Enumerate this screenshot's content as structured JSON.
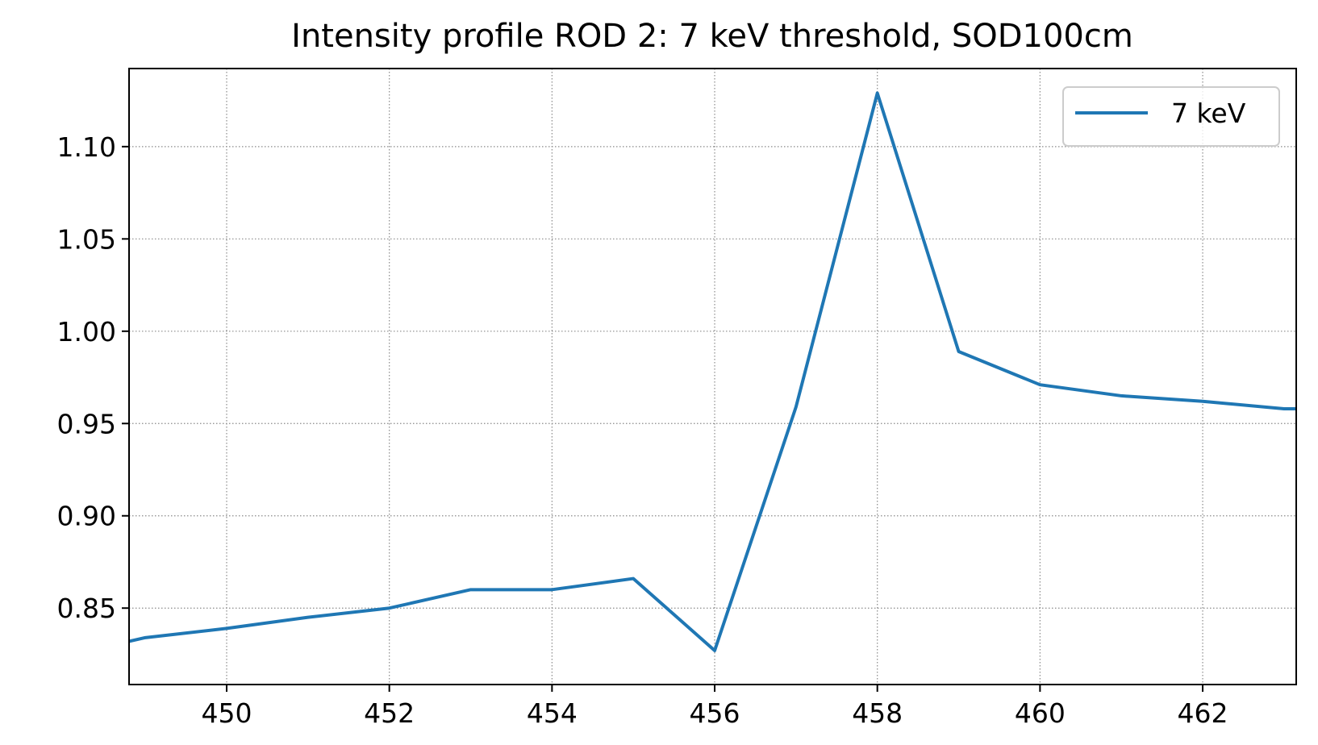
{
  "chart_data": {
    "type": "line",
    "title": "Intensity profile ROD 2: 7 keV threshold, SOD100cm",
    "xlabel": "",
    "ylabel": "",
    "xlim": [
      448.8,
      463.15
    ],
    "ylim": [
      0.8086,
      1.1423
    ],
    "x_ticks": [
      450,
      452,
      454,
      456,
      458,
      460,
      462
    ],
    "y_ticks": [
      0.85,
      0.9,
      0.95,
      1.0,
      1.05,
      1.1
    ],
    "x_tick_labels": [
      "450",
      "452",
      "454",
      "456",
      "458",
      "460",
      "462"
    ],
    "y_tick_labels": [
      "0.85",
      "0.90",
      "0.95",
      "1.00",
      "1.05",
      "1.10"
    ],
    "grid": true,
    "legend_position": "top-right",
    "series": [
      {
        "name": "7 keV",
        "color": "#1f77b4",
        "x": [
          448.8,
          449,
          450,
          451,
          452,
          453,
          454,
          455,
          456,
          457,
          458,
          459,
          460,
          461,
          462,
          463,
          463.15
        ],
        "y": [
          0.832,
          0.834,
          0.839,
          0.845,
          0.85,
          0.86,
          0.86,
          0.866,
          0.827,
          0.959,
          1.129,
          0.989,
          0.971,
          0.965,
          0.962,
          0.958,
          0.958
        ]
      }
    ]
  }
}
